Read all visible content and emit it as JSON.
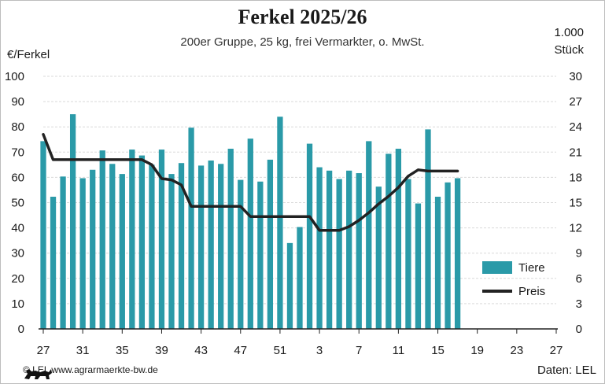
{
  "header": {
    "title": "Ferkel 2025/26",
    "subtitle": "200er Gruppe, 25 kg, frei Vermarkter, o. MwSt."
  },
  "axes": {
    "left_label": "€/Ferkel",
    "right_label_line1": "1.000",
    "right_label_line2": "Stück"
  },
  "legend": {
    "bars_label": "Tiere",
    "line_label": "Preis"
  },
  "footer": {
    "copyright": "© LEL www.agrarmaerkte-bw.de",
    "source": "Daten: LEL"
  },
  "colors": {
    "bars": "#2a9aa8",
    "line": "#222222",
    "grid": "#d9d9d9"
  },
  "chart_data": {
    "type": "bar",
    "title": "Ferkel 2025/26",
    "subtitle": "200er Gruppe, 25 kg, frei Vermarkter, o. MwSt.",
    "xlabel": "",
    "ylabel": "€/Ferkel",
    "y2label": "1.000 Stück",
    "ylim": [
      0,
      100
    ],
    "y2lim": [
      0,
      30
    ],
    "grid": true,
    "legend_position": "bottom-right",
    "x_tick_labels": [
      "27",
      "31",
      "35",
      "39",
      "43",
      "47",
      "51",
      "3",
      "7",
      "11",
      "15",
      "19",
      "23",
      "27"
    ],
    "weeks": [
      "27",
      "28",
      "29",
      "30",
      "31",
      "32",
      "33",
      "34",
      "35",
      "36",
      "37",
      "38",
      "39",
      "40",
      "41",
      "42",
      "43",
      "44",
      "45",
      "46",
      "47",
      "48",
      "49",
      "50",
      "51",
      "52",
      "1",
      "2",
      "3",
      "4",
      "5",
      "6",
      "7",
      "8",
      "9",
      "10",
      "11",
      "12",
      "13",
      "14",
      "15",
      "16",
      "17"
    ],
    "series": [
      {
        "name": "Tiere",
        "kind": "bar",
        "axis": "right",
        "values": [
          22.3,
          15.7,
          18.1,
          25.5,
          17.9,
          18.9,
          21.2,
          19.6,
          18.4,
          21.3,
          20.6,
          19.5,
          21.3,
          18.4,
          19.7,
          23.9,
          19.4,
          20.0,
          19.6,
          21.4,
          17.7,
          22.6,
          17.5,
          20.1,
          25.2,
          10.2,
          12.1,
          22.0,
          19.2,
          18.8,
          17.8,
          18.8,
          18.5,
          22.3,
          16.9,
          20.8,
          21.4,
          17.8,
          14.9,
          23.7,
          15.7,
          17.4,
          17.9
        ]
      },
      {
        "name": "Preis",
        "kind": "line",
        "axis": "left",
        "values": [
          77,
          67,
          67,
          67,
          67,
          67,
          67,
          67,
          67,
          67,
          67,
          65,
          59.5,
          59,
          57,
          48.5,
          48.5,
          48.5,
          48.5,
          48.5,
          48.5,
          44.5,
          44.5,
          44.5,
          44.5,
          44.5,
          44.5,
          44.5,
          39,
          39,
          39,
          40.5,
          43,
          46,
          49.5,
          52.5,
          56,
          60.5,
          63,
          62.5,
          62.5,
          62.5,
          62.5
        ]
      }
    ],
    "left_ticks": [
      0,
      10,
      20,
      30,
      40,
      50,
      60,
      70,
      80,
      90,
      100
    ],
    "right_ticks": [
      0,
      3,
      6,
      9,
      12,
      15,
      18,
      21,
      24,
      27,
      30
    ]
  }
}
